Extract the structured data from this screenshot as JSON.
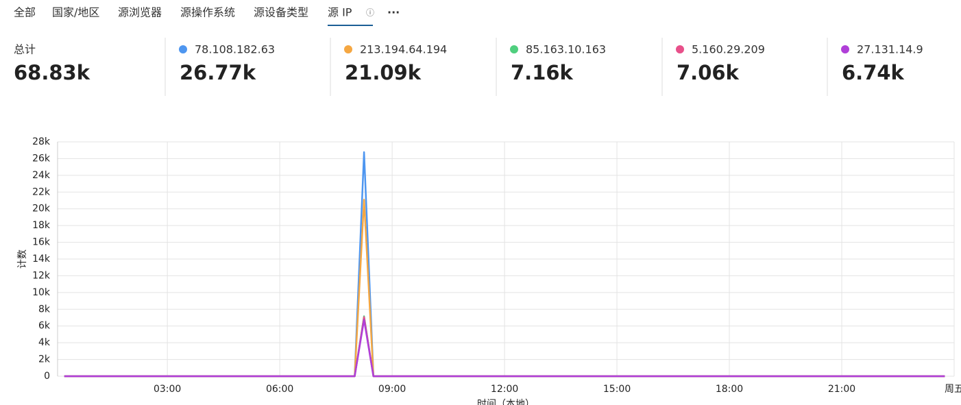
{
  "tabs": [
    "全部",
    "国家/地区",
    "源浏览器",
    "源操作系统",
    "源设备类型",
    "源 IP"
  ],
  "summary": {
    "total_label": "总计",
    "total_value": "68.83k",
    "item_values": [
      "26.77k",
      "21.09k",
      "7.16k",
      "7.06k",
      "6.74k"
    ]
  },
  "chart_data": {
    "type": "line",
    "y_label": "计数",
    "x_label": "时间（本地）",
    "x": [
      0.25,
      8,
      8.25,
      8.5,
      23.75
    ],
    "xlim": [
      0.07,
      24
    ],
    "xticks": [
      {
        "value": 3,
        "label": "03:00"
      },
      {
        "value": 6,
        "label": "06:00"
      },
      {
        "value": 9,
        "label": "09:00"
      },
      {
        "value": 12,
        "label": "12:00"
      },
      {
        "value": 15,
        "label": "15:00"
      },
      {
        "value": 18,
        "label": "18:00"
      },
      {
        "value": 21,
        "label": "21:00"
      },
      {
        "value": 24,
        "label": "周五"
      }
    ],
    "ylim": [
      0,
      28000
    ],
    "yticks": [
      0,
      {
        "value": 2000,
        "label": "2k"
      },
      {
        "value": 4000,
        "label": "4k"
      },
      {
        "value": 6000,
        "label": "6k"
      },
      {
        "value": 8000,
        "label": "8k"
      },
      {
        "value": 10000,
        "label": "10k"
      },
      {
        "value": 12000,
        "label": "12k"
      },
      {
        "value": 14000,
        "label": "14k"
      },
      {
        "value": 16000,
        "label": "16k"
      },
      {
        "value": 18000,
        "label": "18k"
      },
      {
        "value": 20000,
        "label": "20k"
      },
      {
        "value": 22000,
        "label": "22k"
      },
      {
        "value": 24000,
        "label": "24k"
      },
      {
        "value": 26000,
        "label": "26k"
      },
      {
        "value": 28000,
        "label": "28k"
      }
    ],
    "grid": true,
    "series": [
      {
        "name": "78.108.182.63",
        "color": "#4e96f0",
        "values": [
          0,
          0,
          26770,
          0,
          0
        ]
      },
      {
        "name": "213.194.64.194",
        "color": "#f5a742",
        "values": [
          0,
          0,
          21090,
          0,
          0
        ]
      },
      {
        "name": "85.163.10.163",
        "color": "#4fcf7e",
        "values": [
          0,
          0,
          7160,
          0,
          0
        ]
      },
      {
        "name": "5.160.29.209",
        "color": "#e8508a",
        "values": [
          0,
          0,
          7060,
          0,
          0
        ]
      },
      {
        "name": "27.131.14.9",
        "color": "#b03fd8",
        "values": [
          0,
          0,
          6740,
          0,
          0
        ]
      }
    ]
  }
}
